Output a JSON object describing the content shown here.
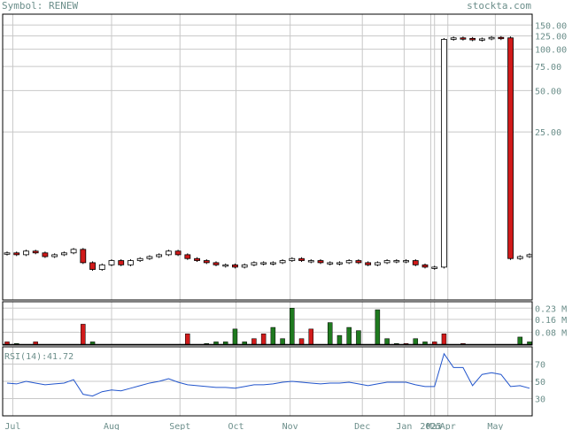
{
  "header": {
    "symbol_label": "Symbol: RENEW",
    "site": "stockta.com"
  },
  "colors": {
    "frame": "#000000",
    "grid": "#c8c8c8",
    "text": "#6b8e8a",
    "up": "#1f7a1f",
    "down": "#d11a1a",
    "rsi_line": "#2255cc",
    "rsi_value": "#2255cc"
  },
  "chart_data": [
    {
      "type": "candlestick",
      "panel": "price",
      "y_scale": "log",
      "ylim": [
        1.5,
        180
      ],
      "y_ticks": [
        "150.00",
        "125.00",
        "100.00",
        "75.00",
        "50.00",
        "25.00"
      ],
      "y_tick_values": [
        150,
        125,
        100,
        75,
        50,
        25
      ],
      "close": [
        3.3,
        3.2,
        3.4,
        3.3,
        3.1,
        3.2,
        3.3,
        3.5,
        2.8,
        2.5,
        2.7,
        2.9,
        2.7,
        2.9,
        3.0,
        3.1,
        3.2,
        3.4,
        3.2,
        3.0,
        2.9,
        2.8,
        2.7,
        2.7,
        2.6,
        2.7,
        2.8,
        2.8,
        2.8,
        2.9,
        3.0,
        2.9,
        2.9,
        2.8,
        2.8,
        2.8,
        2.9,
        2.8,
        2.7,
        2.8,
        2.9,
        2.9,
        2.9,
        2.7,
        2.6,
        2.6,
        118,
        121,
        120,
        117,
        119,
        122,
        121,
        3.0,
        3.1,
        3.2
      ]
    },
    {
      "type": "bar",
      "panel": "volume",
      "y_ticks": [
        "0.23 M",
        "0.16 M",
        "0.08 M"
      ],
      "y_tick_values": [
        0.23,
        0.16,
        0.08
      ],
      "ylim": [
        0,
        0.27
      ],
      "values": [
        0.02,
        0.01,
        0.0,
        0.02,
        0.0,
        0.0,
        0.0,
        0.0,
        0.13,
        0.02,
        0.0,
        0.0,
        0.0,
        0.0,
        0.0,
        0.0,
        0.0,
        0.0,
        0.0,
        0.07,
        0.0,
        0.01,
        0.02,
        0.02,
        0.1,
        0.02,
        0.04,
        0.07,
        0.11,
        0.04,
        0.23,
        0.04,
        0.1,
        0.0,
        0.14,
        0.06,
        0.11,
        0.09,
        0.0,
        0.22,
        0.04,
        0.01,
        0.01,
        0.04,
        0.02,
        0.02,
        0.07,
        0.0,
        0.01,
        0.0,
        0.0,
        0.0,
        0.0,
        0.0,
        0.05,
        0.02
      ],
      "up": [
        false,
        true,
        false,
        false,
        false,
        false,
        false,
        false,
        false,
        true,
        false,
        false,
        false,
        false,
        false,
        false,
        false,
        false,
        false,
        false,
        false,
        true,
        true,
        true,
        true,
        true,
        false,
        false,
        true,
        true,
        true,
        false,
        false,
        false,
        true,
        true,
        true,
        true,
        false,
        true,
        true,
        true,
        false,
        true,
        true,
        false,
        false,
        true,
        false,
        false,
        false,
        false,
        false,
        false,
        true,
        true
      ]
    },
    {
      "type": "line",
      "panel": "rsi",
      "label": "RSI(14):",
      "current_value": "41.72",
      "y_ticks": [
        "70",
        "50",
        "30"
      ],
      "y_tick_values": [
        70,
        50,
        30
      ],
      "ylim": [
        10,
        90
      ],
      "values": [
        48,
        47,
        50,
        48,
        46,
        47,
        48,
        52,
        35,
        33,
        38,
        40,
        39,
        42,
        45,
        48,
        50,
        53,
        49,
        46,
        45,
        44,
        43,
        43,
        42,
        44,
        46,
        46,
        47,
        49,
        50,
        49,
        48,
        47,
        48,
        48,
        49,
        47,
        45,
        47,
        49,
        49,
        49,
        46,
        44,
        44,
        82,
        66,
        66,
        45,
        58,
        60,
        58,
        44,
        45,
        42
      ]
    }
  ],
  "x_axis": {
    "labels": [
      "Jul",
      "Aug",
      "Sept",
      "Oct",
      "Nov",
      "Dec",
      "Jan",
      "2025",
      "Mar",
      "Apr",
      "May"
    ],
    "positions": [
      0.6,
      11,
      18.2,
      24.1,
      29.8,
      37.4,
      41.8,
      44.6,
      45.0,
      46.4,
      51.4
    ]
  }
}
